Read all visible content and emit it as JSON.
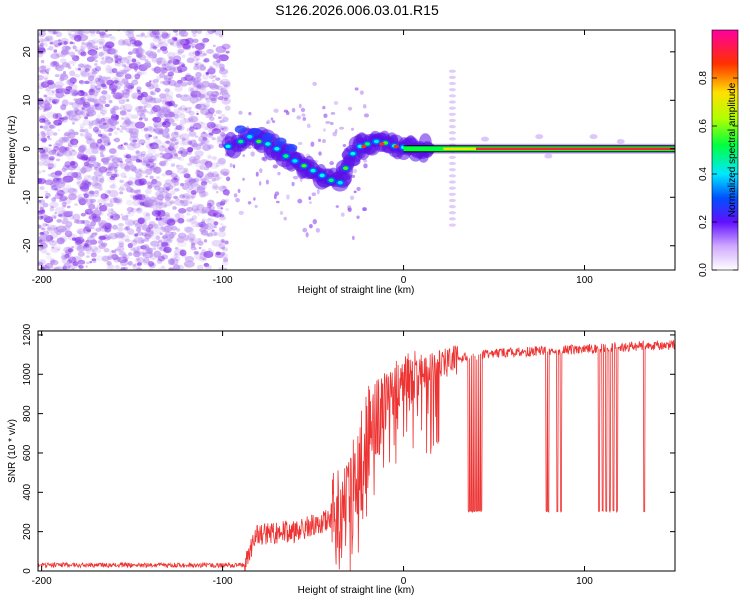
{
  "title": "S126.2026.006.03.01.R15",
  "colors": {
    "snr_line": "#ee3333",
    "axis": "#000000",
    "background": "#ffffff"
  },
  "chart_data": [
    {
      "type": "heatmap",
      "name": "spectrogram",
      "title": "S126.2026.006.03.01.R15",
      "xlabel": "Height of straight line (km)",
      "ylabel": "Frequency (Hz)",
      "xlim": [
        -202,
        150
      ],
      "ylim": [
        -25,
        24.5
      ],
      "x_ticks": [
        -200,
        -100,
        0,
        100
      ],
      "y_ticks": [
        -20,
        -10,
        0,
        10,
        20
      ],
      "colorbar": {
        "label": "Normalized spectral amplitude",
        "range": [
          0,
          1
        ],
        "ticks": [
          0.0,
          0.2,
          0.4,
          0.6,
          0.8
        ]
      },
      "features": {
        "noise_region_km": [
          -202,
          -97
        ],
        "tone_start_km": -97,
        "tone_descent_km": [
          -85,
          -35
        ],
        "tone_min_freq_hz": -7,
        "tone_freq_at_zero_km_hz": 0,
        "steady_tone_km": [
          0,
          150
        ],
        "spurious_line_km": 27
      }
    },
    {
      "type": "line",
      "name": "snr",
      "xlabel": "Height of straight line (km)",
      "ylabel": "SNR (10 * v/v)",
      "xlim": [
        -202,
        150
      ],
      "ylim": [
        0,
        1220
      ],
      "x_ticks": [
        -200,
        -100,
        0,
        100
      ],
      "y_ticks": [
        0,
        200,
        400,
        600,
        800,
        1000,
        1200
      ],
      "series": [
        {
          "name": "SNR",
          "anchors_x": [
            -202,
            -88,
            -82,
            -60,
            -45,
            -35,
            -28,
            -22,
            -17,
            -12,
            0,
            20,
            35,
            45,
            60,
            80,
            100,
            120,
            150
          ],
          "anchors_y": [
            30,
            30,
            180,
            200,
            250,
            260,
            400,
            600,
            750,
            850,
            950,
            1050,
            1090,
            1100,
            1110,
            1120,
            1130,
            1140,
            1150
          ],
          "dropouts_km": [
            36,
            37,
            38,
            39,
            40,
            41,
            42,
            43,
            79,
            80,
            85,
            87,
            108,
            110,
            112,
            114,
            116,
            118,
            133
          ],
          "dropout_level": 310
        }
      ]
    }
  ]
}
